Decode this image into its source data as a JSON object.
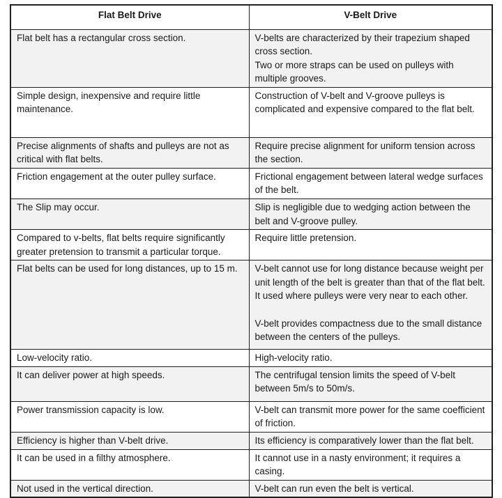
{
  "table": {
    "headers": {
      "flat": "Flat Belt Drive",
      "vbelt": "V-Belt Drive"
    },
    "rows": [
      {
        "flat": "Flat belt has a rectangular cross section.",
        "vbelt": "V-belts are characterized by their trapezium shaped cross section.\nTwo or more straps can be used on pulleys with multiple grooves."
      },
      {
        "flat": "Simple design, inexpensive and require little maintenance.",
        "vbelt": "Construction of V-belt and V-groove pulleys is complicated and expensive compared to the flat belt."
      },
      {
        "flat": "Precise alignments of shafts and pulleys are not as critical with flat belts.",
        "vbelt": "Require precise alignment for uniform tension across the section."
      },
      {
        "flat": "Friction engagement at the outer pulley surface.",
        "vbelt": "Frictional engagement between lateral wedge surfaces of the belt."
      },
      {
        "flat": "The Slip may occur.",
        "vbelt": "Slip is negligible due to wedging action between the belt and V-groove pulley."
      },
      {
        "flat": "Compared to v-belts, flat belts require significantly greater pretension to transmit a particular torque.",
        "vbelt": "Require little pretension."
      },
      {
        "flat": "Flat belts can be used for long distances, up to 15 m.",
        "vbelt": "V-belt cannot use for long distance because weight per unit length of the belt is greater than that of the flat belt. It used where pulleys were very near to each other.\n\nV-belt provides compactness due to the small distance between the centers of the pulleys."
      },
      {
        "flat": "Low-velocity ratio.",
        "vbelt": "High-velocity ratio."
      },
      {
        "flat": "It can deliver power at high speeds.",
        "vbelt": "The centrifugal tension limits the speed of V-belt between 5m/s to 50m/s."
      },
      {
        "flat": "Power transmission capacity is low.",
        "vbelt": "V-belt can transmit more power for the same coefficient of friction."
      },
      {
        "flat": "Efficiency is higher than V-belt drive.",
        "vbelt": "Its efficiency is comparatively lower than the flat belt."
      },
      {
        "flat": "It can be used in a filthy atmosphere.",
        "vbelt": "It cannot use in a nasty environment; it requires a casing."
      },
      {
        "flat": "Not used in the vertical direction.",
        "vbelt": "V-belt can run even the belt is vertical."
      }
    ],
    "colors": {
      "row_stripe": "#f2f2f2",
      "border": "#1f1f1f",
      "text": "#1a1a1a"
    }
  }
}
